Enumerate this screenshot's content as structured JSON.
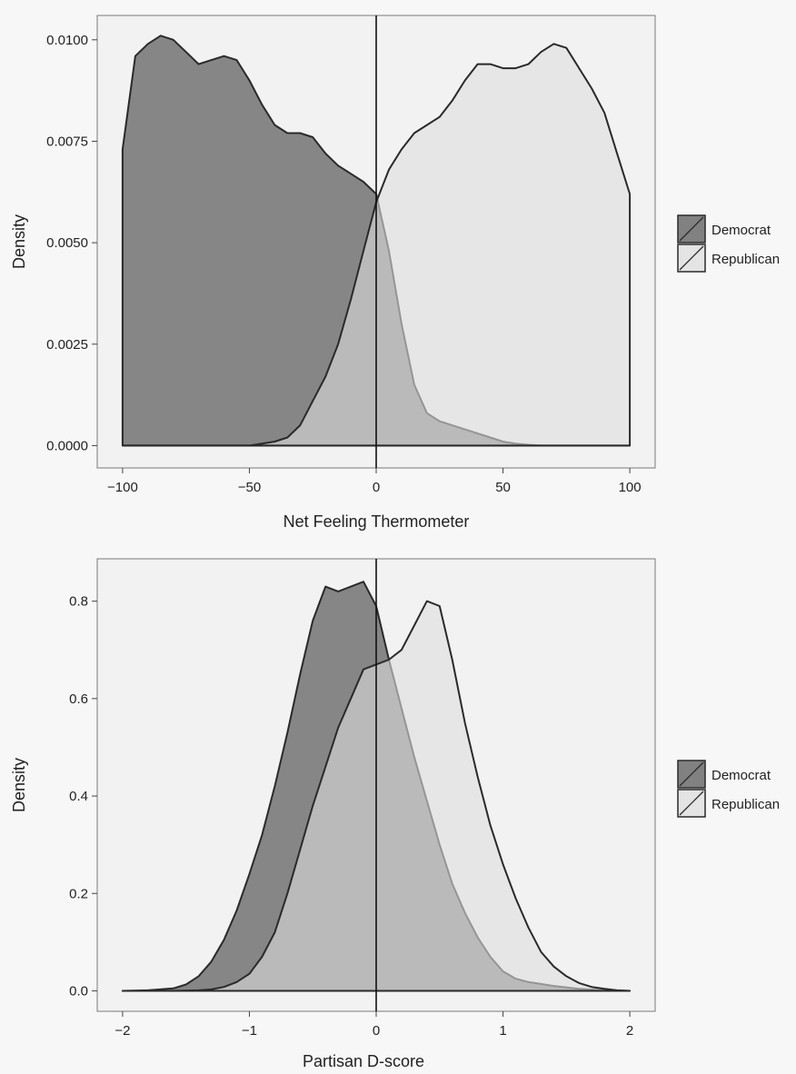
{
  "chart_data": [
    {
      "type": "area",
      "title": "",
      "xlabel": "Net Feeling Thermometer",
      "ylabel": "Density",
      "xlim": [
        -110,
        110
      ],
      "ylim": [
        -0.00055,
        0.0106
      ],
      "xticks": [
        -100,
        -50,
        0,
        50,
        100
      ],
      "xtick_labels": [
        "−100",
        "−50",
        "0",
        "50",
        "100"
      ],
      "yticks": [
        0,
        0.0025,
        0.005,
        0.0075,
        0.01
      ],
      "ytick_labels": [
        "0.0000",
        "0.0025",
        "0.0050",
        "0.0075",
        "0.0100"
      ],
      "vline_x": 0,
      "grid": false,
      "legend_position": "right",
      "series": [
        {
          "name": "Democrat",
          "fill": "#7a7a7a",
          "x": [
            -100,
            -95,
            -90,
            -85,
            -80,
            -75,
            -70,
            -65,
            -60,
            -55,
            -50,
            -45,
            -40,
            -35,
            -30,
            -25,
            -20,
            -15,
            -10,
            -5,
            0,
            5,
            10,
            15,
            20,
            25,
            30,
            35,
            40,
            45,
            50,
            55,
            60,
            65,
            70,
            75,
            80,
            85,
            90,
            95,
            100
          ],
          "y": [
            0.0073,
            0.0096,
            0.0099,
            0.0101,
            0.01,
            0.0097,
            0.0094,
            0.0095,
            0.0096,
            0.0095,
            0.009,
            0.0084,
            0.0079,
            0.0077,
            0.0077,
            0.0076,
            0.0072,
            0.0069,
            0.0067,
            0.0065,
            0.0062,
            0.0048,
            0.003,
            0.0015,
            0.0008,
            0.0006,
            0.0005,
            0.0004,
            0.0003,
            0.0002,
            0.0001,
            5e-05,
            2e-05,
            0,
            0,
            0,
            0,
            0,
            0,
            0,
            0
          ]
        },
        {
          "name": "Republican",
          "fill": "#dedede",
          "x": [
            -100,
            -95,
            -90,
            -85,
            -80,
            -75,
            -70,
            -65,
            -60,
            -55,
            -50,
            -45,
            -40,
            -35,
            -30,
            -25,
            -20,
            -15,
            -10,
            -5,
            0,
            5,
            10,
            15,
            20,
            25,
            30,
            35,
            40,
            45,
            50,
            55,
            60,
            65,
            70,
            75,
            80,
            85,
            90,
            95,
            100
          ],
          "y": [
            0,
            0,
            0,
            0,
            0,
            0,
            0,
            0,
            0,
            0,
            0,
            5e-05,
            0.0001,
            0.0002,
            0.0005,
            0.0011,
            0.0017,
            0.0025,
            0.0036,
            0.0048,
            0.006,
            0.0068,
            0.0073,
            0.0077,
            0.0079,
            0.0081,
            0.0085,
            0.009,
            0.0094,
            0.0094,
            0.0093,
            0.0093,
            0.0094,
            0.0097,
            0.0099,
            0.0098,
            0.0093,
            0.0088,
            0.0082,
            0.0072,
            0.0062
          ]
        }
      ]
    },
    {
      "type": "area",
      "title": "",
      "xlabel": "Partisan D-score",
      "ylabel": "Density",
      "xlim": [
        -2.2,
        2.2
      ],
      "ylim": [
        -0.042,
        0.887
      ],
      "xticks": [
        -2,
        -1,
        0,
        1,
        2
      ],
      "xtick_labels": [
        "−2",
        "−1",
        "0",
        "1",
        "2"
      ],
      "yticks": [
        0,
        0.2,
        0.4,
        0.6,
        0.8
      ],
      "ytick_labels": [
        "0.0",
        "0.2",
        "0.4",
        "0.6",
        "0.8"
      ],
      "vline_x": 0,
      "grid": false,
      "legend_position": "right",
      "series": [
        {
          "name": "Democrat",
          "fill": "#7a7a7a",
          "x": [
            -2,
            -1.8,
            -1.6,
            -1.5,
            -1.4,
            -1.3,
            -1.2,
            -1.1,
            -1,
            -0.9,
            -0.8,
            -0.7,
            -0.6,
            -0.5,
            -0.4,
            -0.3,
            -0.2,
            -0.1,
            0,
            0.1,
            0.2,
            0.3,
            0.4,
            0.5,
            0.6,
            0.7,
            0.8,
            0.9,
            1,
            1.1,
            1.2,
            1.4,
            1.6,
            1.8,
            2
          ],
          "y": [
            0,
            0.001,
            0.005,
            0.013,
            0.03,
            0.06,
            0.105,
            0.165,
            0.24,
            0.32,
            0.42,
            0.53,
            0.65,
            0.76,
            0.83,
            0.82,
            0.83,
            0.84,
            0.79,
            0.68,
            0.58,
            0.48,
            0.39,
            0.3,
            0.22,
            0.16,
            0.11,
            0.07,
            0.04,
            0.025,
            0.018,
            0.01,
            0.004,
            0.001,
            0
          ]
        },
        {
          "name": "Republican",
          "fill": "#dedede",
          "x": [
            -2,
            -1.6,
            -1.4,
            -1.3,
            -1.2,
            -1.1,
            -1,
            -0.9,
            -0.8,
            -0.7,
            -0.6,
            -0.5,
            -0.4,
            -0.3,
            -0.2,
            -0.1,
            0,
            0.1,
            0.2,
            0.3,
            0.4,
            0.5,
            0.6,
            0.7,
            0.8,
            0.9,
            1,
            1.1,
            1.2,
            1.3,
            1.4,
            1.5,
            1.6,
            1.7,
            1.8,
            1.9,
            2
          ],
          "y": [
            0,
            0,
            0.001,
            0.003,
            0.008,
            0.018,
            0.035,
            0.07,
            0.12,
            0.2,
            0.29,
            0.38,
            0.46,
            0.54,
            0.6,
            0.66,
            0.67,
            0.68,
            0.7,
            0.75,
            0.8,
            0.79,
            0.68,
            0.55,
            0.44,
            0.34,
            0.26,
            0.19,
            0.13,
            0.08,
            0.05,
            0.03,
            0.016,
            0.008,
            0.004,
            0.001,
            0
          ]
        }
      ]
    }
  ]
}
